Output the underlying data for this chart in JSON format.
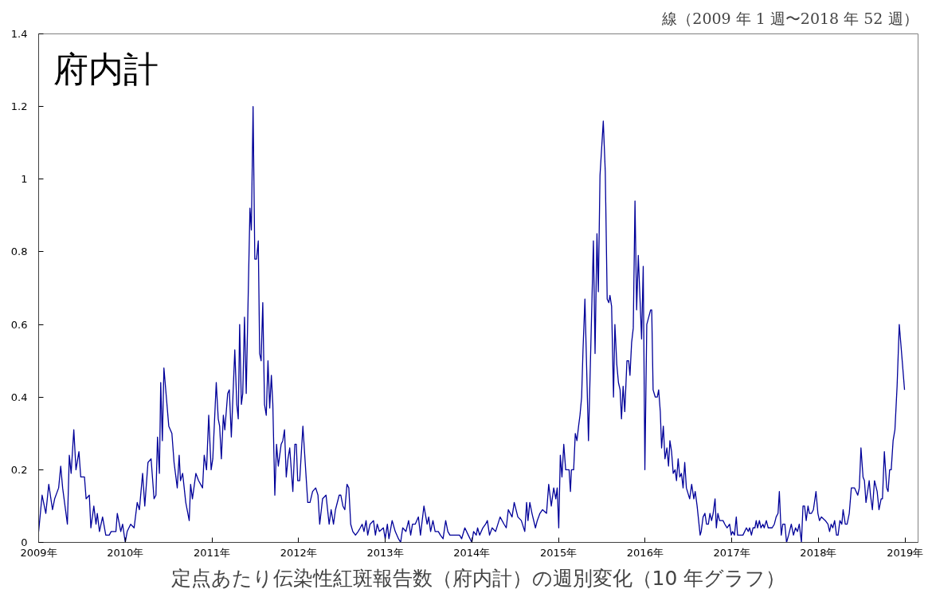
{
  "chart_data": {
    "type": "line",
    "title": "定点あたり伝染性紅斑報告数（府内計）の週別変化（10 年グラフ）",
    "subtitle": "線（2009 年 1 週〜2018 年 52 週）",
    "annotations": [
      "府内計"
    ],
    "series": [
      {
        "color": "#000099",
        "x": [
          2009.0,
          2009.04,
          2009.083,
          2009.117,
          2009.16,
          2009.185,
          2009.231,
          2009.255,
          2009.277,
          2009.332,
          2009.354,
          2009.375,
          2009.406,
          2009.431,
          2009.465,
          2009.486,
          2009.529,
          2009.548,
          2009.585,
          2009.603,
          2009.637,
          2009.662,
          2009.677,
          2009.702,
          2009.738,
          2009.775,
          2009.815,
          2009.837,
          2009.892,
          2009.908,
          2009.948,
          2009.969,
          2010.0,
          2010.022,
          2010.062,
          2010.102,
          2010.138,
          2010.163,
          2010.2,
          2010.225,
          2010.262,
          2010.298,
          2010.332,
          2010.354,
          2010.372,
          2010.394,
          2010.409,
          2010.428,
          2010.446,
          2010.502,
          2010.538,
          2010.563,
          2010.6,
          2010.622,
          2010.637,
          2010.662,
          2010.698,
          2010.738,
          2010.754,
          2010.775,
          2010.815,
          2010.846,
          2010.892,
          2010.911,
          2010.938,
          2010.963,
          2010.991,
          2011.01,
          2011.05,
          2011.073,
          2011.089,
          2011.109,
          2011.132,
          2011.149,
          2011.182,
          2011.201,
          2011.224,
          2011.264,
          2011.287,
          2011.304,
          2011.32,
          2011.34,
          2011.356,
          2011.376,
          2011.396,
          2011.439,
          2011.455,
          2011.475,
          2011.495,
          2011.515,
          2011.535,
          2011.551,
          2011.568,
          2011.587,
          2011.607,
          2011.627,
          2011.647,
          2011.667,
          2011.686,
          2011.703,
          2011.726,
          2011.746,
          2011.766,
          2011.799,
          2011.818,
          2011.838,
          2011.858,
          2011.878,
          2011.898,
          2011.934,
          2011.957,
          2011.974,
          2011.99,
          2012.013,
          2012.05,
          2012.106,
          2012.132,
          2012.162,
          2012.198,
          2012.224,
          2012.244,
          2012.277,
          2012.317,
          2012.353,
          2012.376,
          2012.403,
          2012.426,
          2012.469,
          2012.488,
          2012.512,
          2012.534,
          2012.559,
          2012.58,
          2012.602,
          2012.626,
          2012.657,
          2012.688,
          2012.712,
          2012.734,
          2012.755,
          2012.779,
          2012.798,
          2012.825,
          2012.865,
          2012.887,
          2012.908,
          2012.933,
          2012.979,
          2013.0,
          2013.025,
          2013.043,
          2013.08,
          2013.116,
          2013.153,
          2013.178,
          2013.202,
          2013.239,
          2013.27,
          2013.294,
          2013.315,
          2013.346,
          2013.383,
          2013.407,
          2013.447,
          2013.484,
          2013.502,
          2013.524,
          2013.551,
          2013.576,
          2013.613,
          2013.637,
          2013.668,
          2013.698,
          2013.723,
          2013.747,
          2013.806,
          2013.858,
          2013.882,
          2013.919,
          2013.959,
          2014.0,
          2014.02,
          2014.051,
          2014.066,
          2014.09,
          2014.127,
          2014.158,
          2014.179,
          2014.204,
          2014.234,
          2014.274,
          2014.326,
          2014.372,
          2014.397,
          2014.421,
          2014.464,
          2014.489,
          2014.531,
          2014.571,
          2014.611,
          2014.632,
          2014.648,
          2014.669,
          2014.694,
          2014.734,
          2014.755,
          2014.786,
          2014.816,
          2014.862,
          2014.887,
          2014.917,
          2014.945,
          2014.969,
          2014.985,
          2015.003,
          2015.021,
          2015.04,
          2015.061,
          2015.083,
          2015.122,
          2015.138,
          2015.149,
          2015.175,
          2015.194,
          2015.213,
          2015.232,
          2015.248,
          2015.267,
          2015.283,
          2015.305,
          2015.324,
          2015.346,
          2015.371,
          2015.403,
          2015.422,
          2015.444,
          2015.46,
          2015.479,
          2015.517,
          2015.54,
          2015.562,
          2015.581,
          2015.594,
          2015.613,
          2015.635,
          2015.651,
          2015.673,
          2015.692,
          2015.711,
          2015.727,
          2015.746,
          2015.765,
          2015.79,
          2015.81,
          2015.825,
          2015.844,
          2015.863,
          2015.883,
          2015.902,
          2015.921,
          2015.959,
          2015.978,
          2015.997,
          2016.019,
          2016.063,
          2016.076,
          2016.092,
          2016.117,
          2016.14,
          2016.156,
          2016.175,
          2016.19,
          2016.21,
          2016.229,
          2016.251,
          2016.27,
          2016.286,
          2016.305,
          2016.324,
          2016.346,
          2016.362,
          2016.381,
          2016.4,
          2016.419,
          2016.438,
          2016.457,
          2016.476,
          2016.514,
          2016.537,
          2016.562,
          2016.578,
          2016.6,
          2016.635,
          2016.647,
          2016.669,
          2016.69,
          2016.709,
          2016.73,
          2016.748,
          2016.767,
          2016.785,
          2016.807,
          2016.822,
          2016.84,
          2016.859,
          2016.899,
          2016.92,
          2016.945,
          2016.975,
          2016.994,
          2017.009,
          2017.031,
          2017.052,
          2017.067,
          2017.129,
          2017.169,
          2017.19,
          2017.206,
          2017.227,
          2017.245,
          2017.267,
          2017.282,
          2017.298,
          2017.319,
          2017.337,
          2017.359,
          2017.374,
          2017.399,
          2017.42,
          2017.466,
          2017.491,
          2017.512,
          2017.534,
          2017.549,
          2017.571,
          2017.589,
          2017.613,
          2017.632,
          2017.656,
          2017.687,
          2017.712,
          2017.736,
          2017.758,
          2017.779,
          2017.804,
          2017.822,
          2017.84,
          2017.859,
          2017.88,
          2017.896,
          2017.92,
          2017.942,
          2017.972,
          2017.994,
          2018.012,
          2018.034,
          2018.08,
          2018.11,
          2018.129,
          2018.147,
          2018.166,
          2018.187,
          2018.209,
          2018.227,
          2018.248,
          2018.27,
          2018.285,
          2018.31,
          2018.331,
          2018.356,
          2018.38,
          2018.417,
          2018.454,
          2018.472,
          2018.491,
          2018.515,
          2018.531,
          2018.549,
          2018.586,
          2018.601,
          2018.623,
          2018.647,
          2018.678,
          2018.699,
          2018.724,
          2018.739,
          2018.761,
          2018.788,
          2018.804,
          2018.822,
          2018.84,
          2018.862,
          2018.883,
          2018.908,
          2018.933,
          2018.957,
          2018.994
        ],
        "values": [
          0.03,
          0.13,
          0.08,
          0.16,
          0.09,
          0.12,
          0.15,
          0.21,
          0.15,
          0.05,
          0.24,
          0.19,
          0.31,
          0.2,
          0.25,
          0.18,
          0.18,
          0.12,
          0.13,
          0.04,
          0.1,
          0.05,
          0.08,
          0.03,
          0.07,
          0.02,
          0.02,
          0.03,
          0.03,
          0.08,
          0.03,
          0.05,
          0.0,
          0.03,
          0.05,
          0.04,
          0.11,
          0.09,
          0.19,
          0.1,
          0.22,
          0.23,
          0.12,
          0.13,
          0.29,
          0.19,
          0.44,
          0.28,
          0.48,
          0.32,
          0.3,
          0.22,
          0.15,
          0.24,
          0.17,
          0.19,
          0.11,
          0.06,
          0.16,
          0.12,
          0.19,
          0.17,
          0.15,
          0.24,
          0.2,
          0.35,
          0.2,
          0.23,
          0.44,
          0.34,
          0.32,
          0.23,
          0.35,
          0.31,
          0.41,
          0.42,
          0.29,
          0.53,
          0.38,
          0.34,
          0.6,
          0.38,
          0.41,
          0.62,
          0.41,
          0.92,
          0.86,
          1.2,
          0.78,
          0.78,
          0.83,
          0.52,
          0.5,
          0.66,
          0.38,
          0.35,
          0.5,
          0.37,
          0.46,
          0.38,
          0.13,
          0.27,
          0.21,
          0.27,
          0.28,
          0.31,
          0.18,
          0.23,
          0.26,
          0.14,
          0.27,
          0.27,
          0.17,
          0.17,
          0.32,
          0.11,
          0.11,
          0.14,
          0.15,
          0.13,
          0.05,
          0.12,
          0.13,
          0.05,
          0.09,
          0.05,
          0.09,
          0.13,
          0.13,
          0.1,
          0.09,
          0.16,
          0.15,
          0.05,
          0.03,
          0.02,
          0.03,
          0.04,
          0.05,
          0.03,
          0.06,
          0.02,
          0.05,
          0.06,
          0.02,
          0.05,
          0.03,
          0.04,
          0.01,
          0.05,
          0.01,
          0.06,
          0.03,
          0.01,
          0.0,
          0.04,
          0.03,
          0.06,
          0.02,
          0.05,
          0.05,
          0.07,
          0.02,
          0.1,
          0.05,
          0.07,
          0.03,
          0.06,
          0.03,
          0.03,
          0.02,
          0.01,
          0.06,
          0.03,
          0.02,
          0.02,
          0.02,
          0.01,
          0.04,
          0.02,
          0.0,
          0.03,
          0.02,
          0.04,
          0.02,
          0.04,
          0.05,
          0.06,
          0.02,
          0.04,
          0.03,
          0.07,
          0.05,
          0.04,
          0.09,
          0.07,
          0.11,
          0.07,
          0.06,
          0.03,
          0.11,
          0.06,
          0.11,
          0.08,
          0.04,
          0.06,
          0.08,
          0.09,
          0.08,
          0.16,
          0.1,
          0.15,
          0.12,
          0.15,
          0.04,
          0.24,
          0.18,
          0.27,
          0.2,
          0.2,
          0.14,
          0.2,
          0.2,
          0.3,
          0.28,
          0.32,
          0.35,
          0.4,
          0.53,
          0.67,
          0.49,
          0.28,
          0.52,
          0.83,
          0.52,
          0.85,
          0.69,
          1.01,
          1.16,
          1.02,
          0.67,
          0.66,
          0.68,
          0.65,
          0.4,
          0.6,
          0.49,
          0.44,
          0.42,
          0.34,
          0.43,
          0.36,
          0.5,
          0.5,
          0.46,
          0.55,
          0.59,
          0.94,
          0.64,
          0.79,
          0.56,
          0.76,
          0.2,
          0.6,
          0.64,
          0.64,
          0.42,
          0.4,
          0.4,
          0.42,
          0.36,
          0.26,
          0.32,
          0.23,
          0.26,
          0.21,
          0.28,
          0.25,
          0.19,
          0.2,
          0.17,
          0.23,
          0.18,
          0.19,
          0.15,
          0.22,
          0.15,
          0.12,
          0.16,
          0.12,
          0.14,
          0.1,
          0.02,
          0.03,
          0.07,
          0.08,
          0.05,
          0.05,
          0.08,
          0.06,
          0.08,
          0.12,
          0.04,
          0.08,
          0.06,
          0.06,
          0.05,
          0.04,
          0.05,
          0.02,
          0.03,
          0.02,
          0.07,
          0.02,
          0.02,
          0.04,
          0.03,
          0.04,
          0.02,
          0.04,
          0.04,
          0.06,
          0.04,
          0.06,
          0.04,
          0.05,
          0.04,
          0.06,
          0.04,
          0.04,
          0.05,
          0.07,
          0.08,
          0.14,
          0.02,
          0.05,
          0.05,
          0.0,
          0.02,
          0.05,
          0.02,
          0.04,
          0.03,
          0.05,
          0.0,
          0.1,
          0.1,
          0.06,
          0.1,
          0.08,
          0.08,
          0.09,
          0.14,
          0.08,
          0.06,
          0.07,
          0.06,
          0.05,
          0.03,
          0.05,
          0.04,
          0.06,
          0.02,
          0.02,
          0.06,
          0.05,
          0.09,
          0.05,
          0.05,
          0.08,
          0.15,
          0.15,
          0.13,
          0.15,
          0.26,
          0.18,
          0.17,
          0.11,
          0.17,
          0.13,
          0.09,
          0.17,
          0.14,
          0.09,
          0.12,
          0.12,
          0.25,
          0.15,
          0.14,
          0.2,
          0.2,
          0.28,
          0.31,
          0.43,
          0.6,
          0.53,
          0.42
        ]
      }
    ],
    "xlim": [
      2009,
      2019.15
    ],
    "xticks": [
      {
        "value": 2009,
        "label": "2009年"
      },
      {
        "value": 2010,
        "label": "2010年"
      },
      {
        "value": 2011,
        "label": "2011年"
      },
      {
        "value": 2012,
        "label": "2012年"
      },
      {
        "value": 2013,
        "label": "2013年"
      },
      {
        "value": 2014,
        "label": "2014年"
      },
      {
        "value": 2015,
        "label": "2015年"
      },
      {
        "value": 2016,
        "label": "2016年"
      },
      {
        "value": 2017,
        "label": "2017年"
      },
      {
        "value": 2018,
        "label": "2018年"
      },
      {
        "value": 2019,
        "label": "2019年"
      }
    ],
    "ylim": [
      0,
      1.4
    ],
    "yticks": [
      0,
      0.2,
      0.4,
      0.6,
      0.8,
      1,
      1.2,
      1.4
    ],
    "grid": false,
    "marker": "none",
    "line_style": "solid"
  }
}
